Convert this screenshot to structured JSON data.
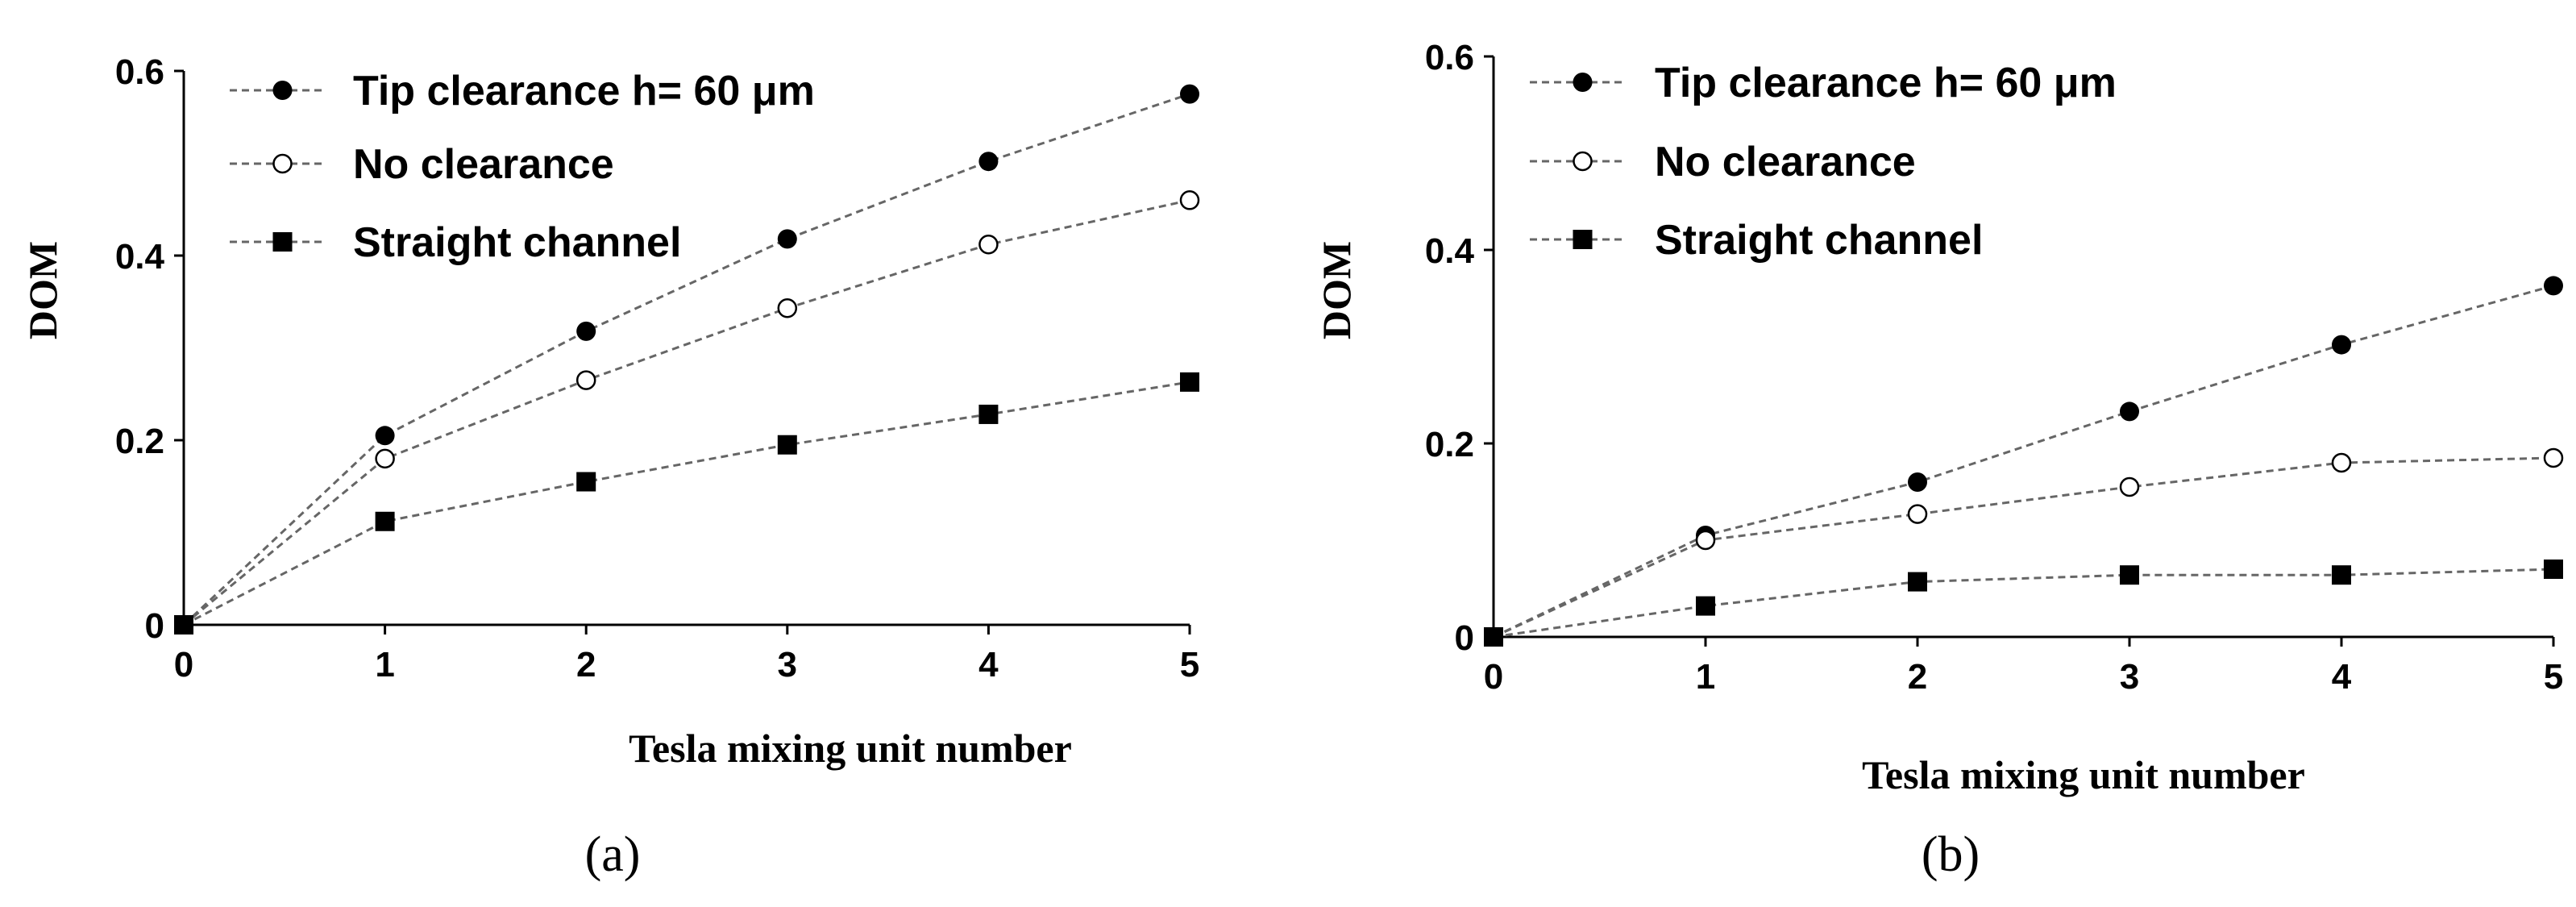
{
  "chart_data": [
    {
      "type": "line",
      "panel": "a",
      "panel_label": "(a)",
      "xlabel": "Tesla mixing unit number",
      "ylabel": "DOM",
      "x": [
        0,
        1,
        2,
        3,
        4,
        5
      ],
      "xlim": [
        0,
        5
      ],
      "ylim": [
        0,
        0.6
      ],
      "yticks": [
        "0",
        "0.2",
        "0.4",
        "0.6"
      ],
      "xticks": [
        "0",
        "1",
        "2",
        "3",
        "4",
        "5"
      ],
      "legend_position": "top-left",
      "series": [
        {
          "name": "Tip clearance h= 60 μm",
          "marker": "filled-circle",
          "values": [
            0.0,
            0.205,
            0.318,
            0.418,
            0.502,
            0.575
          ]
        },
        {
          "name": "No clearance",
          "marker": "open-circle",
          "values": [
            0.0,
            0.18,
            0.265,
            0.343,
            0.412,
            0.46
          ]
        },
        {
          "name": "Straight channel",
          "marker": "filled-square",
          "values": [
            0.0,
            0.112,
            0.155,
            0.195,
            0.228,
            0.263
          ]
        }
      ]
    },
    {
      "type": "line",
      "panel": "b",
      "panel_label": "(b)",
      "xlabel": "Tesla mixing unit number",
      "ylabel": "DOM",
      "x": [
        0,
        1,
        2,
        3,
        4,
        5
      ],
      "xlim": [
        0,
        5
      ],
      "ylim": [
        0,
        0.6
      ],
      "yticks": [
        "0",
        "0.2",
        "0.4",
        "0.6"
      ],
      "xticks": [
        "0",
        "1",
        "2",
        "3",
        "4",
        "5"
      ],
      "legend_position": "top-left",
      "series": [
        {
          "name": "Tip clearance h= 60 μm",
          "marker": "filled-circle",
          "values": [
            0.0,
            0.105,
            0.16,
            0.233,
            0.302,
            0.363
          ]
        },
        {
          "name": "No clearance",
          "marker": "open-circle",
          "values": [
            0.0,
            0.1,
            0.127,
            0.155,
            0.18,
            0.185
          ]
        },
        {
          "name": "Straight channel",
          "marker": "filled-square",
          "values": [
            0.0,
            0.032,
            0.057,
            0.064,
            0.064,
            0.07
          ]
        }
      ]
    }
  ]
}
